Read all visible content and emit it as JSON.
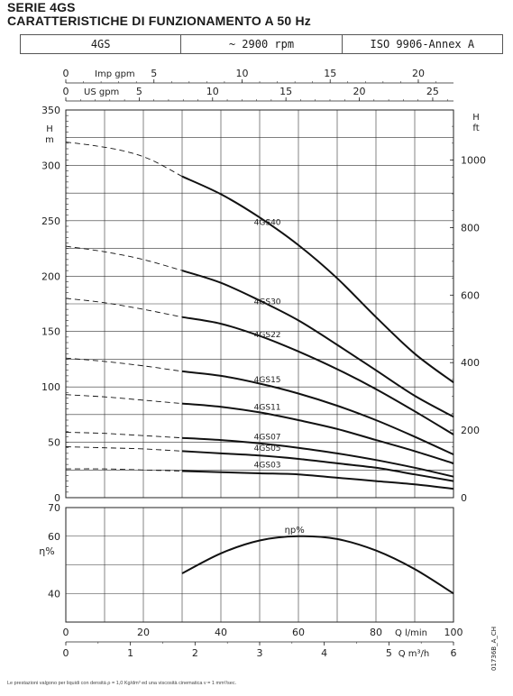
{
  "title_line1": "SERIE 4GS",
  "title_line2": "CARATTERISTICHE DI FUNZIONAMENTO A 50 Hz",
  "header_cells": [
    "4GS",
    "~ 2900 rpm",
    "ISO 9906-Annex A"
  ],
  "footnote": "Le prestazioni valgono per liquidi con densità ρ = 1,0 Kg/dm³ ed una viscosità cinematica ν = 1 mm²/sec.",
  "drawing_code": "01736B_A_CH",
  "chart_data": [
    {
      "type": "line",
      "panel": "head",
      "ylabel_left": "H m",
      "ylabel_right": "H ft",
      "xlim": [
        0,
        100
      ],
      "ylim": [
        0,
        350
      ],
      "yticks_left": [
        0,
        50,
        100,
        150,
        200,
        250,
        300,
        350
      ],
      "yticks_right": [
        0,
        200,
        400,
        600,
        800,
        1000
      ],
      "ft_per_m": 3.281,
      "top_axes": [
        {
          "label": "Imp gpm",
          "ticks": [
            0,
            5,
            10,
            15,
            20
          ],
          "per_lmin": 0.21997
        },
        {
          "label": "US gpm",
          "ticks": [
            0,
            5,
            10,
            15,
            20,
            25
          ],
          "per_lmin": 0.26417
        }
      ],
      "series": [
        {
          "name": "4GS40",
          "extrapolated": {
            "x": [
              0,
              7,
              15,
              22,
              30
            ],
            "y": [
              321,
              318,
              313,
              305,
              290
            ]
          },
          "points": {
            "x": [
              30,
              40,
              50,
              60,
              70,
              80,
              90,
              100
            ],
            "y": [
              290,
              274,
              253,
              228,
              198,
              163,
              130,
              104
            ]
          }
        },
        {
          "name": "4GS30",
          "extrapolated": {
            "x": [
              0,
              10,
              20,
              30
            ],
            "y": [
              227,
              222,
              215,
              205
            ]
          },
          "points": {
            "x": [
              30,
              40,
              50,
              60,
              70,
              80,
              90,
              100
            ],
            "y": [
              205,
              194,
              178,
              160,
              138,
              115,
              92,
              73
            ]
          }
        },
        {
          "name": "4GS22",
          "extrapolated": {
            "x": [
              0,
              10,
              20,
              30
            ],
            "y": [
              180,
              176,
              170,
              163
            ]
          },
          "points": {
            "x": [
              30,
              40,
              50,
              60,
              70,
              80,
              90,
              100
            ],
            "y": [
              163,
              157,
              146,
              132,
              116,
              98,
              78,
              57
            ]
          }
        },
        {
          "name": "4GS15",
          "extrapolated": {
            "x": [
              0,
              10,
              20,
              30
            ],
            "y": [
              126,
              123,
              119,
              114
            ]
          },
          "points": {
            "x": [
              30,
              40,
              50,
              60,
              70,
              80,
              90,
              100
            ],
            "y": [
              114,
              110,
              103,
              94,
              83,
              70,
              55,
              39
            ]
          }
        },
        {
          "name": "4GS11",
          "extrapolated": {
            "x": [
              0,
              10,
              20,
              30
            ],
            "y": [
              93,
              91,
              88,
              85
            ]
          },
          "points": {
            "x": [
              30,
              40,
              50,
              60,
              70,
              80,
              90,
              100
            ],
            "y": [
              85,
              82,
              77,
              70,
              62,
              52,
              42,
              31
            ]
          }
        },
        {
          "name": "4GS07",
          "extrapolated": {
            "x": [
              0,
              10,
              20,
              30
            ],
            "y": [
              59,
              58,
              56,
              54
            ]
          },
          "points": {
            "x": [
              30,
              40,
              50,
              60,
              70,
              80,
              90,
              100
            ],
            "y": [
              54,
              52,
              49,
              45,
              40,
              34,
              27,
              19
            ]
          }
        },
        {
          "name": "4GS05",
          "extrapolated": {
            "x": [
              0,
              10,
              20,
              30
            ],
            "y": [
              46,
              45,
              44,
              42
            ]
          },
          "points": {
            "x": [
              30,
              40,
              50,
              60,
              70,
              80,
              90,
              100
            ],
            "y": [
              42,
              40,
              38,
              35,
              31,
              27,
              21,
              15
            ]
          }
        },
        {
          "name": "4GS03",
          "extrapolated": {
            "x": [
              0,
              10,
              20,
              30
            ],
            "y": [
              26,
              26,
              25,
              24
            ]
          },
          "points": {
            "x": [
              30,
              40,
              50,
              60,
              70,
              80,
              90,
              100
            ],
            "y": [
              24,
              23,
              22,
              21,
              18,
              15,
              12,
              8
            ]
          }
        }
      ],
      "grid": true
    },
    {
      "type": "line",
      "panel": "efficiency",
      "ylabel": "η%",
      "xlim": [
        0,
        100
      ],
      "ylim": [
        30,
        70
      ],
      "yticks": [
        40,
        50,
        60,
        70
      ],
      "ytick_labels": [
        "40",
        "",
        "60",
        "70"
      ],
      "series": [
        {
          "name": "ηp%",
          "x": [
            30,
            40,
            50,
            60,
            70,
            80,
            90,
            100
          ],
          "y": [
            47,
            54,
            58.5,
            60,
            59,
            55,
            48.5,
            40
          ]
        }
      ],
      "xaxes": [
        {
          "label": "Q l/min",
          "ticks": [
            0,
            20,
            40,
            60,
            80,
            100
          ]
        },
        {
          "label": "Q m³/h",
          "ticks": [
            0,
            1,
            2,
            3,
            4,
            5,
            6
          ],
          "per_lmin": 0.06
        }
      ],
      "grid": true
    }
  ]
}
